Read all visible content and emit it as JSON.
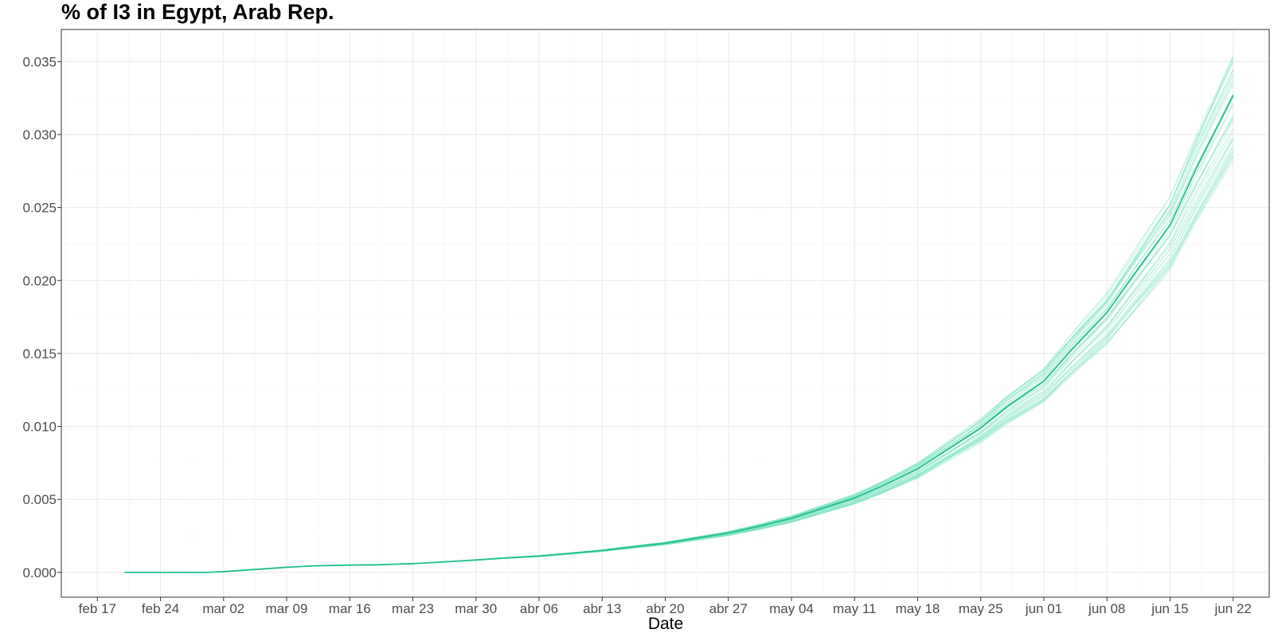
{
  "chart_data": {
    "type": "line",
    "title": "% of I3 in  Egypt, Arab Rep.",
    "xlabel": "Date",
    "ylabel": "",
    "x_tick_labels": [
      "feb 17",
      "feb 24",
      "mar 02",
      "mar 09",
      "mar 16",
      "mar 23",
      "mar 30",
      "abr 06",
      "abr 13",
      "abr 20",
      "abr 27",
      "may 04",
      "may 11",
      "may 18",
      "may 25",
      "jun 01",
      "jun 08",
      "jun 15",
      "jun 22"
    ],
    "x_tick_dates": [
      "2020-02-17",
      "2020-02-24",
      "2020-03-02",
      "2020-03-09",
      "2020-03-16",
      "2020-03-23",
      "2020-03-30",
      "2020-04-06",
      "2020-04-13",
      "2020-04-20",
      "2020-04-27",
      "2020-05-04",
      "2020-05-11",
      "2020-05-18",
      "2020-05-25",
      "2020-06-01",
      "2020-06-08",
      "2020-06-15",
      "2020-06-22"
    ],
    "y_tick_labels": [
      "0.000",
      "0.005",
      "0.010",
      "0.015",
      "0.020",
      "0.025",
      "0.030",
      "0.035"
    ],
    "xlim": [
      "2020-02-13",
      "2020-06-26"
    ],
    "ylim": [
      -0.0017,
      0.0372
    ],
    "grid": true,
    "legend": "none",
    "colors": {
      "line": "#1fc08e",
      "ensemble": "#7fe3c4"
    },
    "series": [
      {
        "role": "median",
        "x": [
          "2020-02-20",
          "2020-02-23",
          "2020-02-26",
          "2020-02-29",
          "2020-03-02",
          "2020-03-05",
          "2020-03-09",
          "2020-03-12",
          "2020-03-16",
          "2020-03-19",
          "2020-03-23",
          "2020-03-26",
          "2020-03-30",
          "2020-04-02",
          "2020-04-06",
          "2020-04-09",
          "2020-04-13",
          "2020-04-16",
          "2020-04-20",
          "2020-04-23",
          "2020-04-27",
          "2020-04-30",
          "2020-05-04",
          "2020-05-07",
          "2020-05-11",
          "2020-05-14",
          "2020-05-18",
          "2020-05-21",
          "2020-05-25",
          "2020-05-28",
          "2020-06-01",
          "2020-06-04",
          "2020-06-08",
          "2020-06-11",
          "2020-06-15",
          "2020-06-18",
          "2020-06-22"
        ],
        "y": [
          0.0,
          0.0,
          0.0,
          0.0,
          5e-05,
          0.00018,
          0.00035,
          0.00045,
          0.0005,
          0.00052,
          0.0006,
          0.0007,
          0.00085,
          0.00098,
          0.00112,
          0.00128,
          0.0015,
          0.00172,
          0.002,
          0.0023,
          0.0027,
          0.0031,
          0.0037,
          0.0043,
          0.0051,
          0.0059,
          0.0071,
          0.0083,
          0.0099,
          0.0114,
          0.0131,
          0.0152,
          0.0178,
          0.0204,
          0.0238,
          0.0278,
          0.0327
        ]
      }
    ],
    "ensemble": {
      "count": 40,
      "spread_at_end": [
        0.0285,
        0.0352
      ],
      "note_visible": "faint overlapping simulation lines around the median"
    }
  }
}
